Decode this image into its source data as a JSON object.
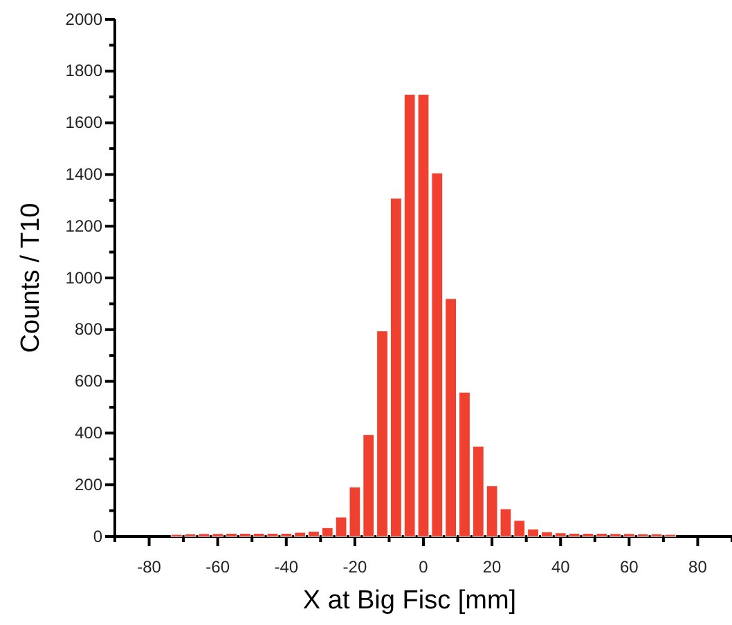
{
  "chart_data": {
    "type": "histogram",
    "xlabel": "X at Big Fisc [mm]",
    "ylabel": "Counts / T10",
    "color": "#f04030",
    "bins": [
      -74,
      -70,
      -66,
      -62,
      -58,
      -54,
      -50,
      -46,
      -42,
      -38,
      -34,
      -30,
      -26,
      -22,
      -18,
      -14,
      -10,
      -6,
      -2,
      2,
      6,
      10,
      14,
      18,
      22,
      26,
      30,
      34,
      38,
      42,
      46,
      50,
      54,
      58,
      62,
      66,
      70,
      74
    ],
    "values": [
      8,
      10,
      11,
      11,
      12,
      12,
      12,
      12,
      12,
      16,
      20,
      34,
      75,
      191,
      394,
      795,
      1308,
      1710,
      1710,
      1406,
      920,
      558,
      349,
      196,
      107,
      62,
      29,
      18,
      14,
      12,
      12,
      12,
      11,
      11,
      10,
      10,
      8
    ],
    "xlim": [
      -90,
      90
    ],
    "xticks": [
      {
        "value": -90,
        "label": null
      },
      -80,
      {
        "value": -70,
        "label": null
      },
      -60,
      {
        "value": -50,
        "label": null
      },
      -40,
      {
        "value": -30,
        "label": null
      },
      -20,
      {
        "value": -10,
        "label": null
      },
      0,
      {
        "value": 10,
        "label": null
      },
      20,
      {
        "value": 30,
        "label": null
      },
      40,
      {
        "value": 50,
        "label": null
      },
      60,
      {
        "value": 70,
        "label": null
      },
      80,
      {
        "value": 90,
        "label": null
      }
    ],
    "ylim": [
      0,
      2000
    ],
    "yticks": [
      0,
      {
        "value": 100,
        "label": null
      },
      200,
      {
        "value": 300,
        "label": null
      },
      400,
      {
        "value": 500,
        "label": null
      },
      600,
      {
        "value": 700,
        "label": null
      },
      800,
      {
        "value": 900,
        "label": null
      },
      1000,
      {
        "value": 1100,
        "label": null
      },
      1200,
      {
        "value": 1300,
        "label": null
      },
      1400,
      {
        "value": 1500,
        "label": null
      },
      1600,
      {
        "value": 1700,
        "label": null
      },
      1800,
      {
        "value": 1900,
        "label": null
      },
      2000
    ],
    "grid": false
  }
}
